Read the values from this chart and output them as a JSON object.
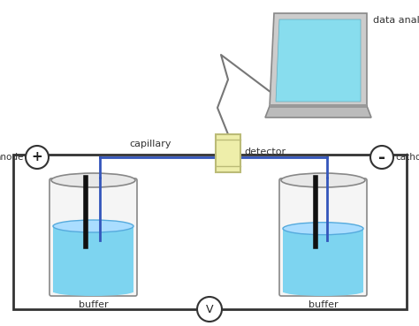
{
  "bg_color": "#ffffff",
  "box_color": "#333333",
  "blue_line_color": "#3355bb",
  "buffer_color": "#7dd4f0",
  "buffer_color2": "#aaddff",
  "electrode_color": "#111111",
  "capillary_rect_color": "#eeeeaa",
  "capillary_rect_edge": "#bbbb77",
  "laptop_screen_color": "#88ddee",
  "laptop_body_color": "#bbbbcc",
  "laptop_base_color": "#aaaaaa",
  "cable_color": "#777777",
  "labels": {
    "anode": "anode",
    "cathode": "cathode",
    "buffer_left": "buffer",
    "buffer_right": "buffer",
    "capillary": "capillary",
    "detector": "detector",
    "data_analysis": "data analysis",
    "voltage": "V"
  },
  "plus_symbol": "+",
  "minus_symbol": "-"
}
